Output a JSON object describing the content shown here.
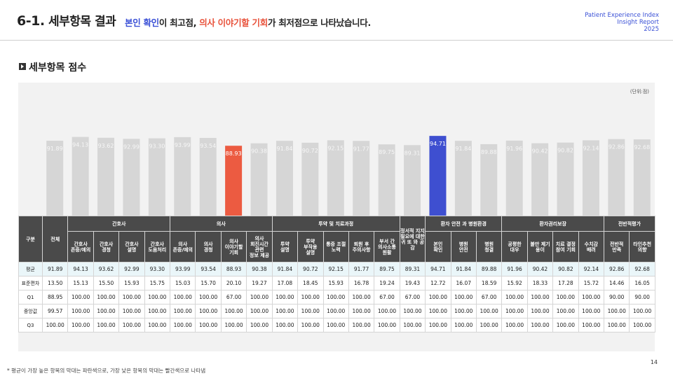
{
  "header": {
    "title_num": "6-1.",
    "title_text": "세부항목 결과",
    "subtitle": {
      "part1": "본인 확인",
      "part2": "이 최고점, ",
      "part3": "의사 이야기할 기회",
      "part4": "가 최저점으로 나타났습니다."
    },
    "report_line1": "Patient Experience Index",
    "report_line2": "Insight Report",
    "report_line3": "2025"
  },
  "section_title": "세부항목 점수",
  "unit_label": "(단위:점)",
  "colors": {
    "bar_default": "#d6d6d6",
    "bar_max": "#3e4fd0",
    "bar_min": "#ec5b41",
    "header_bg": "#4a4a4a"
  },
  "chart_data": {
    "type": "bar",
    "categories": [
      "전체",
      "친호사 존중/예의",
      "간호사 경청",
      "간호사 설명",
      "간호사 도움처리",
      "의사 존중/예의",
      "의사 경청",
      "의사 이야기할 기회",
      "의사 회진시간 관련 정보 제공",
      "투약 설명",
      "투약 부작용 설명",
      "통증 조절 노력",
      "퇴원 후 주의사항",
      "부서 간 의사소통 원활",
      "정서적 지지 필요에 대한 귀 또 와 공감",
      "본인 확인",
      "병원 안전",
      "병원 청결",
      "공평한 대우",
      "불만 제기 용이",
      "치료 결정 참여 기회",
      "수치감 배려",
      "전반적 만족",
      "타인추천 의향"
    ],
    "values": [
      91.89,
      94.13,
      93.62,
      92.99,
      93.3,
      93.99,
      93.54,
      88.93,
      90.38,
      91.84,
      90.72,
      92.15,
      91.77,
      89.75,
      89.31,
      94.71,
      91.84,
      89.88,
      91.96,
      90.42,
      90.82,
      92.14,
      92.86,
      92.68
    ],
    "value_labels": [
      "91.89",
      "94.13",
      "93.62",
      "92.99",
      "93.30",
      "93.99",
      "93.54",
      "88.93",
      "90.38",
      "91.84",
      "90.72",
      "92.15",
      "91.77",
      "89.75",
      "89.31",
      "94.71",
      "91.84",
      "89.88",
      "91.96",
      "90.42",
      "90.82",
      "92.14",
      "92.86",
      "92.68"
    ],
    "max_index": 15,
    "min_index": 7
  },
  "table": {
    "col_group_label": "구분",
    "total_label": "전체",
    "groups": [
      "간호사",
      "의사",
      "투약 및 치료과정",
      "정서적 지지 필요에 대한 귀 또 와 공감",
      "환자 안전 과 병원환경",
      "환자권리보장",
      "전반적평가"
    ],
    "subcols": [
      [
        "간호사",
        "존중/예의"
      ],
      [
        "간호사",
        "경청"
      ],
      [
        "간호사",
        "설명"
      ],
      [
        "간호사",
        "도움처리"
      ],
      [
        "의사",
        "존중/예의"
      ],
      [
        "의사",
        "경청"
      ],
      [
        "의사",
        "이야기할",
        "기회"
      ],
      [
        "의사",
        "회진시간",
        "관련",
        "정보 제공"
      ],
      [
        "투약",
        "설명"
      ],
      [
        "투약",
        "부작용",
        "설명"
      ],
      [
        "통증 조절",
        "노력"
      ],
      [
        "퇴원 후",
        "주의사항"
      ],
      [
        "부서 간",
        "의사소통",
        "원활"
      ],
      [
        "본인",
        "확인"
      ],
      [
        "병원",
        "안전"
      ],
      [
        "병원",
        "청결"
      ],
      [
        "공평한",
        "대우"
      ],
      [
        "불만 제기",
        "용이"
      ],
      [
        "치료 결정",
        "참여 기회"
      ],
      [
        "수치감",
        "배려"
      ],
      [
        "전반적",
        "만족"
      ],
      [
        "타인추천",
        "의향"
      ]
    ],
    "rows": [
      {
        "label": "평균",
        "values": [
          "91.89",
          "94.13",
          "93.62",
          "92.99",
          "93.30",
          "93.99",
          "93.54",
          "88.93",
          "90.38",
          "91.84",
          "90.72",
          "92.15",
          "91.77",
          "89.75",
          "89.31",
          "94.71",
          "91.84",
          "89.88",
          "91.96",
          "90.42",
          "90.82",
          "92.14",
          "92.86",
          "92.68"
        ]
      },
      {
        "label": "표준편차",
        "values": [
          "13.50",
          "15.13",
          "15.50",
          "15.93",
          "15.75",
          "15.03",
          "15.70",
          "20.10",
          "19.27",
          "17.08",
          "18.45",
          "15.93",
          "16.78",
          "19.24",
          "19.43",
          "12.72",
          "16.07",
          "18.59",
          "15.92",
          "18.33",
          "17.28",
          "15.72",
          "14.46",
          "16.05"
        ]
      },
      {
        "label": "Q1",
        "values": [
          "88.95",
          "100.00",
          "100.00",
          "100.00",
          "100.00",
          "100.00",
          "100.00",
          "67.00",
          "100.00",
          "100.00",
          "100.00",
          "100.00",
          "100.00",
          "67.00",
          "67.00",
          "100.00",
          "100.00",
          "67.00",
          "100.00",
          "100.00",
          "100.00",
          "100.00",
          "90.00",
          "90.00"
        ]
      },
      {
        "label": "중앙값",
        "values": [
          "99.57",
          "100.00",
          "100.00",
          "100.00",
          "100.00",
          "100.00",
          "100.00",
          "100.00",
          "100.00",
          "100.00",
          "100.00",
          "100.00",
          "100.00",
          "100.00",
          "100.00",
          "100.00",
          "100.00",
          "100.00",
          "100.00",
          "100.00",
          "100.00",
          "100.00",
          "100.00",
          "100.00"
        ]
      },
      {
        "label": "Q3",
        "values": [
          "100.00",
          "100.00",
          "100.00",
          "100.00",
          "100.00",
          "100.00",
          "100.00",
          "100.00",
          "100.00",
          "100.00",
          "100.00",
          "100.00",
          "100.00",
          "100.00",
          "100.00",
          "100.00",
          "100.00",
          "100.00",
          "100.00",
          "100.00",
          "100.00",
          "100.00",
          "100.00",
          "100.00"
        ]
      }
    ]
  },
  "footnote": "* 평균이 가장 높은 항목의 막대는 파란색으로, 가장 낮은 항목의 막대는 빨간색으로 나타냄",
  "page_number": "14"
}
